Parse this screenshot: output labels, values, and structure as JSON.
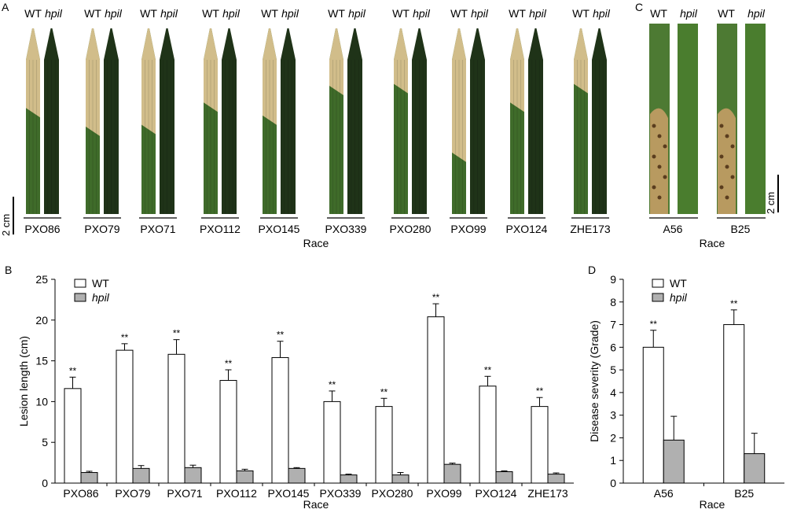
{
  "panels": {
    "a_label": "A",
    "b_label": "B",
    "c_label": "C",
    "d_label": "D"
  },
  "photo_a": {
    "pairs": [
      {
        "wt": "WT",
        "mut": "hpil",
        "race": "PXO86"
      },
      {
        "wt": "WT",
        "mut": "hpil",
        "race": "PXO79"
      },
      {
        "wt": "WT",
        "mut": "hpil",
        "race": "PXO71"
      },
      {
        "wt": "WT",
        "mut": "hpil",
        "race": "PXO112"
      },
      {
        "wt": "WT",
        "mut": "hpil",
        "race": "PXO145"
      },
      {
        "wt": "WT",
        "mut": "hpil",
        "race": "PXO339"
      },
      {
        "wt": "WT",
        "mut": "hpil",
        "race": "PXO280"
      },
      {
        "wt": "WT",
        "mut": "hpil",
        "race": "PXO99"
      },
      {
        "wt": "WT",
        "mut": "hpil",
        "race": "PXO124"
      },
      {
        "wt": "WT",
        "mut": "hpil",
        "race": "ZHE173"
      }
    ],
    "scale": "2 cm",
    "xlabel": "Race",
    "colors": {
      "healthy": "#3f6b2a",
      "lesion": "#d9c28f",
      "dark": "#1f3318"
    }
  },
  "photo_c": {
    "pairs": [
      {
        "wt": "WT",
        "mut": "hpil",
        "race": "A56"
      },
      {
        "wt": "WT",
        "mut": "hpil",
        "race": "B25"
      }
    ],
    "scale": "2 cm",
    "xlabel": "Race"
  },
  "chart_data": [
    {
      "panel": "B",
      "type": "bar",
      "title": "",
      "xlabel": "Race",
      "ylabel": "Lesion length (cm)",
      "categories": [
        "PXO86",
        "PXO79",
        "PXO71",
        "PXO112",
        "PXO145",
        "PXO339",
        "PXO280",
        "PXO99",
        "PXO124",
        "ZHE173"
      ],
      "ylim": [
        0,
        25
      ],
      "yticks": [
        0,
        5,
        10,
        15,
        20,
        25
      ],
      "legend_position": "top-left",
      "grid": false,
      "series": [
        {
          "name": "WT",
          "color": "#ffffff",
          "values": [
            11.6,
            16.3,
            15.8,
            12.6,
            15.4,
            10.0,
            9.4,
            20.4,
            11.9,
            9.4
          ],
          "errors": [
            1.4,
            0.8,
            1.8,
            1.3,
            2.0,
            1.3,
            1.0,
            1.6,
            1.2,
            1.1
          ]
        },
        {
          "name": "hpil",
          "color": "#b0b0b0",
          "values": [
            1.3,
            1.8,
            1.9,
            1.5,
            1.8,
            1.0,
            1.0,
            2.3,
            1.4,
            1.1
          ],
          "errors": [
            0.15,
            0.35,
            0.3,
            0.2,
            0.1,
            0.1,
            0.3,
            0.15,
            0.1,
            0.15
          ]
        }
      ],
      "annotations": [
        "**",
        "**",
        "**",
        "**",
        "**",
        "**",
        "**",
        "**",
        "**",
        "**"
      ]
    },
    {
      "panel": "D",
      "type": "bar",
      "title": "",
      "xlabel": "Race",
      "ylabel": "Disease severity (Grade)",
      "categories": [
        "A56",
        "B25"
      ],
      "ylim": [
        0,
        9
      ],
      "yticks": [
        0,
        1,
        2,
        3,
        4,
        5,
        6,
        7,
        8,
        9
      ],
      "legend_position": "top-left",
      "grid": false,
      "series": [
        {
          "name": "WT",
          "color": "#ffffff",
          "values": [
            6.0,
            7.0
          ],
          "errors": [
            0.75,
            0.65
          ]
        },
        {
          "name": "hpil",
          "color": "#b0b0b0",
          "values": [
            1.9,
            1.3
          ],
          "errors": [
            1.05,
            0.9
          ]
        }
      ],
      "annotations": [
        "**",
        "**"
      ]
    }
  ]
}
